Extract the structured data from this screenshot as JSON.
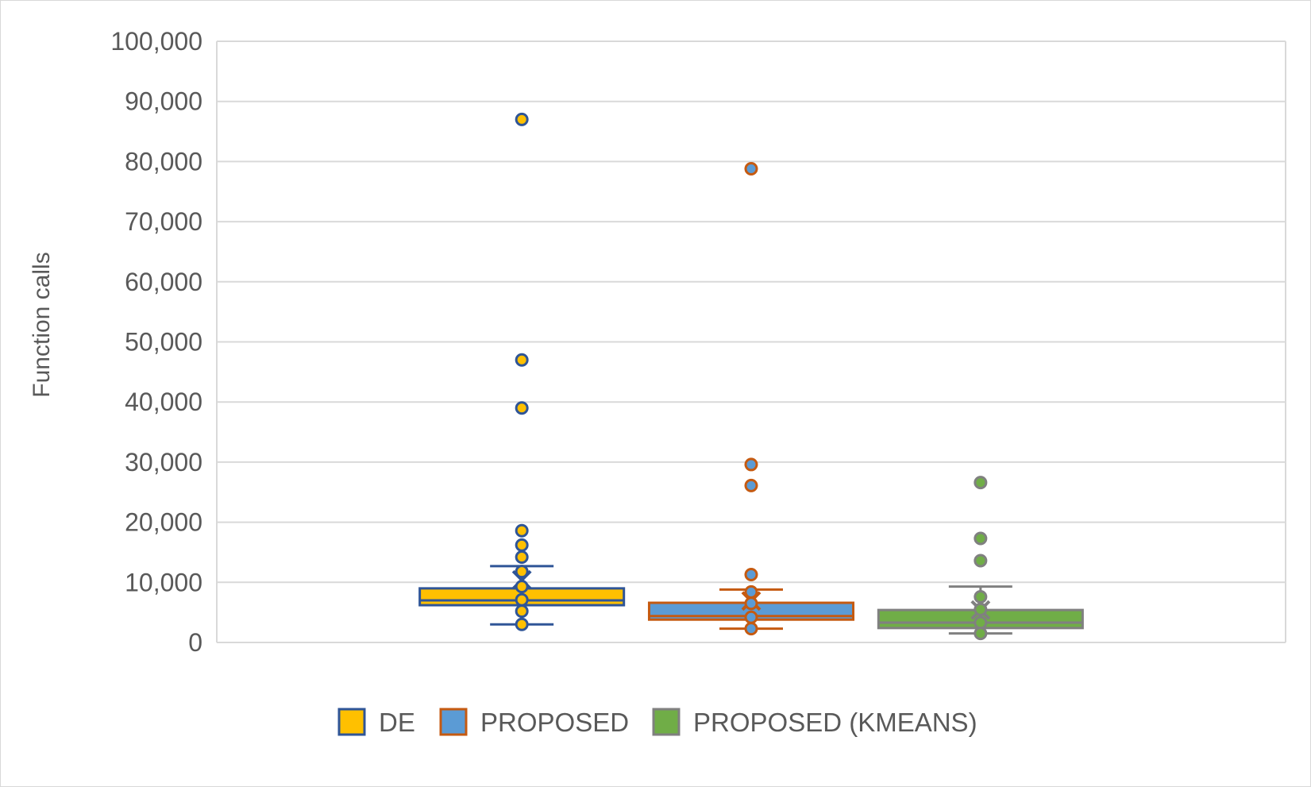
{
  "chart_data": {
    "type": "box",
    "ylabel": "Function calls",
    "xlabel": "",
    "title": "",
    "ylim": [
      0,
      100000
    ],
    "y_ticks": [
      0,
      10000,
      20000,
      30000,
      40000,
      50000,
      60000,
      70000,
      80000,
      90000,
      100000
    ],
    "y_tick_labels": [
      "0",
      "10,000",
      "20,000",
      "30,000",
      "40,000",
      "50,000",
      "60,000",
      "70,000",
      "80,000",
      "90,000",
      "100,000"
    ],
    "grid": true,
    "legend_position": "bottom",
    "series": [
      {
        "name": "DE",
        "fill": "#FFC000",
        "stroke": "#2F5597",
        "whisker_low": 3000,
        "q1": 6200,
        "median": 7000,
        "q3": 9000,
        "whisker_high": 12700,
        "mean": 10400,
        "points": [
          87000,
          47000,
          39000,
          18600,
          16200,
          14200,
          11800,
          9300,
          7100,
          5200,
          3000
        ]
      },
      {
        "name": "PROPOSED",
        "fill": "#5B9BD5",
        "stroke": "#C55A11",
        "whisker_low": 2300,
        "q1": 3800,
        "median": 4400,
        "q3": 6600,
        "whisker_high": 8800,
        "mean": 6900,
        "points": [
          78800,
          29600,
          26100,
          11300,
          8400,
          6500,
          4200,
          2300
        ]
      },
      {
        "name": "PROPOSED (KMEANS)",
        "fill": "#70AD47",
        "stroke": "#808080",
        "whisker_low": 1500,
        "q1": 2400,
        "median": 3300,
        "q3": 5400,
        "whisker_high": 9300,
        "mean": 5400,
        "points": [
          26600,
          17300,
          13600,
          7600,
          5500,
          3300,
          1500
        ]
      }
    ]
  }
}
